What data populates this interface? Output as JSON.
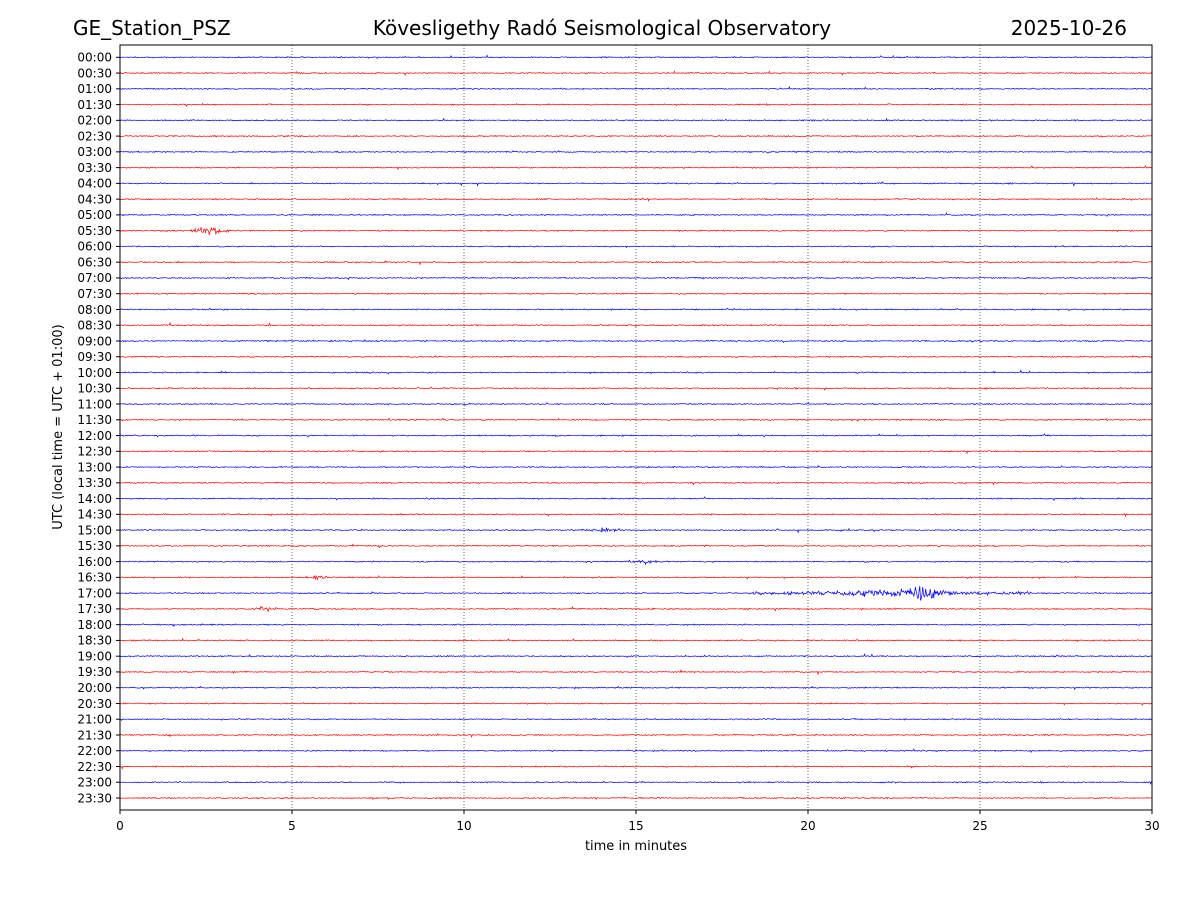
{
  "header": {
    "left": "GE_Station_PSZ",
    "center": "Kövesligethy Radó Seismological Observatory",
    "right": "2025-10-26"
  },
  "chart_data": {
    "type": "line",
    "title": "Kövesligethy Radó Seismological Observatory",
    "xlabel": "time in minutes",
    "ylabel": "UTC (local time = UTC + 01:00)",
    "xlim": [
      0,
      30
    ],
    "x_ticks": [
      0,
      5,
      10,
      15,
      20,
      25,
      30
    ],
    "x_tick_labels": [
      "0",
      "5",
      "10",
      "15",
      "20",
      "25",
      "30"
    ],
    "vertical_gridlines_at": [
      5,
      10,
      15,
      20,
      25
    ],
    "row_labels": [
      "00:00",
      "00:30",
      "01:00",
      "01:30",
      "02:00",
      "02:30",
      "03:00",
      "03:30",
      "04:00",
      "04:30",
      "05:00",
      "05:30",
      "06:00",
      "06:30",
      "07:00",
      "07:30",
      "08:00",
      "08:30",
      "09:00",
      "09:30",
      "10:00",
      "10:30",
      "11:00",
      "11:30",
      "12:00",
      "12:30",
      "13:00",
      "13:30",
      "14:00",
      "14:30",
      "15:00",
      "15:30",
      "16:00",
      "16:30",
      "17:00",
      "17:30",
      "18:00",
      "18:30",
      "19:00",
      "19:30",
      "20:00",
      "20:30",
      "21:00",
      "21:30",
      "22:00",
      "22:30",
      "23:00",
      "23:30"
    ],
    "series_colors": {
      "on_the_hour": "#0000ff",
      "half_hour": "#ff0000"
    },
    "events": [
      {
        "row": "05:30",
        "start_min": 2.0,
        "end_min": 3.2,
        "amplitude": 4
      },
      {
        "row": "15:00",
        "start_min": 13.4,
        "end_min": 14.6,
        "amplitude": 2
      },
      {
        "row": "16:00",
        "start_min": 14.8,
        "end_min": 15.6,
        "amplitude": 2
      },
      {
        "row": "16:30",
        "start_min": 5.4,
        "end_min": 6.2,
        "amplitude": 2
      },
      {
        "row": "17:00",
        "start_min": 18.4,
        "end_min": 26.5,
        "amplitude": 3
      },
      {
        "row": "17:00",
        "start_min": 22.6,
        "end_min": 24.2,
        "amplitude": 8
      },
      {
        "row": "17:30",
        "start_min": 3.8,
        "end_min": 4.6,
        "amplitude": 2
      }
    ]
  }
}
